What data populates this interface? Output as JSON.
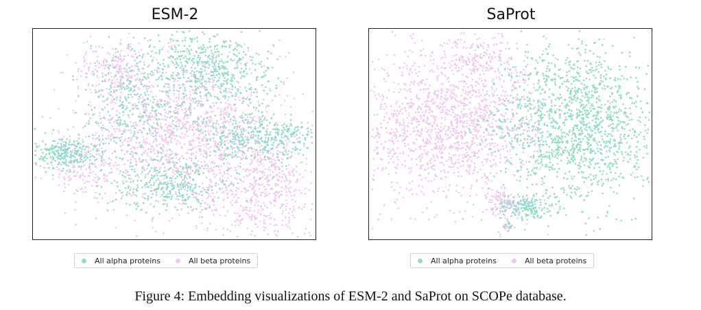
{
  "figure": {
    "caption": "Figure 4: Embedding visualizations of ESM-2 and SaProt on SCOPe database."
  },
  "colors": {
    "alpha": "#8fdcc7",
    "beta": "#f2c4f2"
  },
  "panels": [
    {
      "title": "ESM-2",
      "legend": [
        "All alpha proteins",
        "All beta proteins"
      ]
    },
    {
      "title": "SaProt",
      "legend": [
        "All alpha proteins",
        "All beta proteins"
      ]
    }
  ],
  "chart_data": [
    {
      "type": "scatter",
      "title": "ESM-2",
      "series": [
        {
          "name": "All alpha proteins",
          "description_regions": [
            "upper-center cluster",
            "left edge cluster",
            "lower-center band",
            "right edge band"
          ]
        },
        {
          "name": "All beta proteins",
          "description_regions": [
            "central mass",
            "lower-right scatter",
            "left lower cluster"
          ]
        }
      ]
    },
    {
      "type": "scatter",
      "title": "SaProt",
      "series": [
        {
          "name": "All alpha proteins",
          "description_regions": [
            "right half dense cluster",
            "bottom-center small cluster"
          ]
        },
        {
          "name": "All beta proteins",
          "description_regions": [
            "left half dense cluster",
            "top-center spur",
            "bottom-center small cluster"
          ]
        }
      ]
    }
  ]
}
